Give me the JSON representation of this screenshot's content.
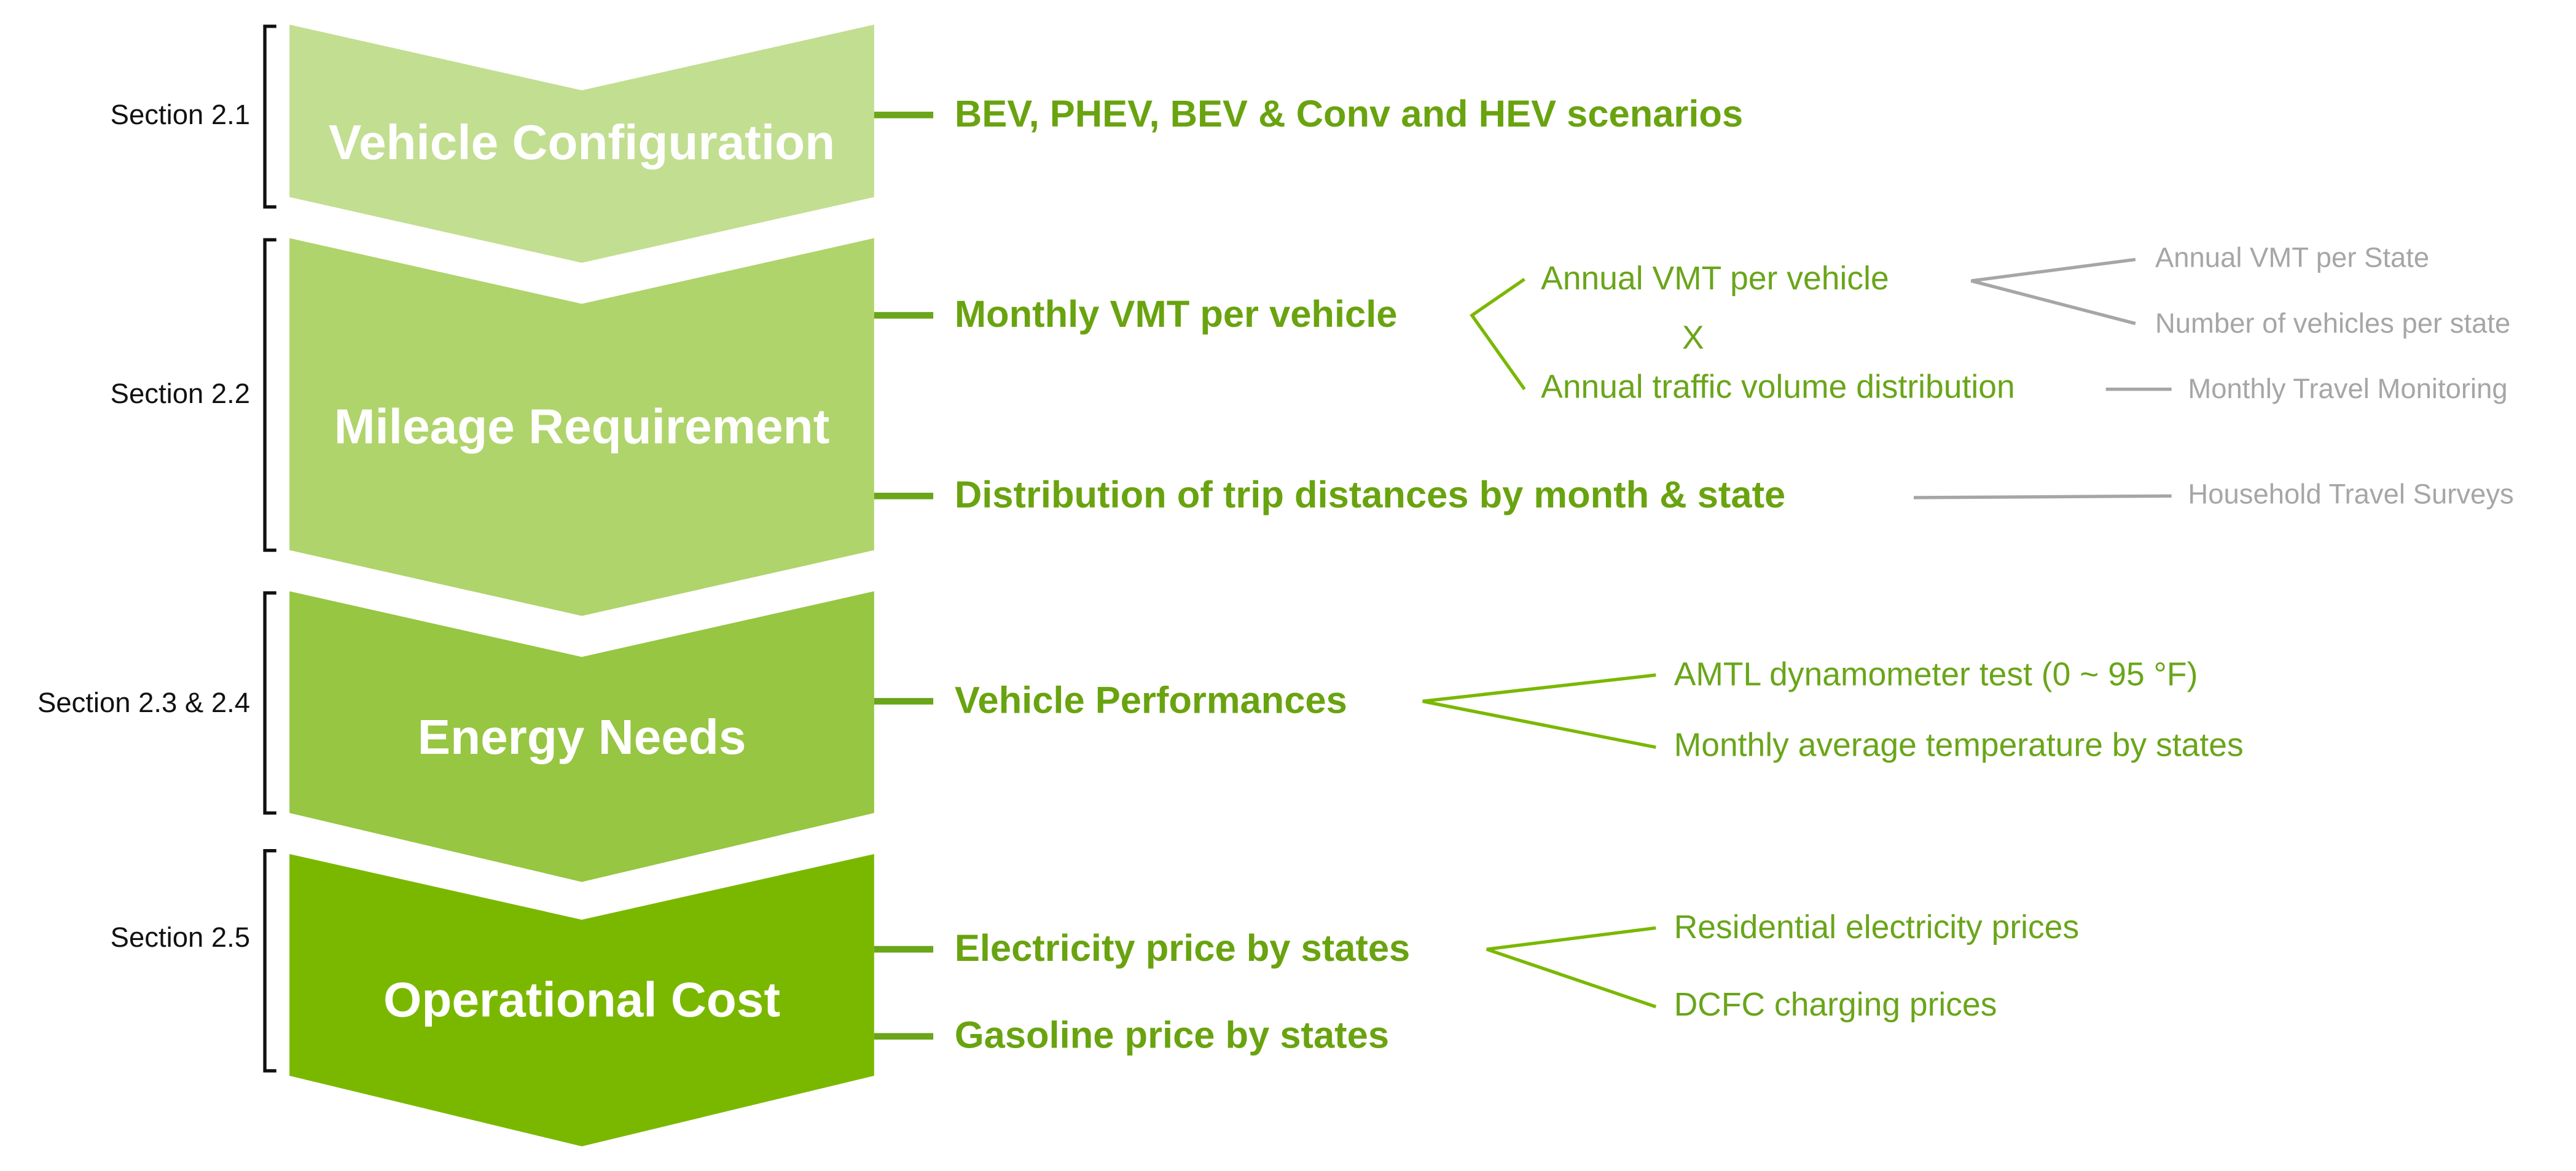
{
  "sections": [
    {
      "label": "Section 2.1",
      "title": "Vehicle Configuration",
      "items": [
        {
          "text": "BEV, PHEV, BEV & Conv and HEV scenarios"
        }
      ]
    },
    {
      "label": "Section 2.2",
      "title": "Mileage Requirement",
      "items": [
        {
          "text": "Monthly VMT per vehicle",
          "inputs": [
            {
              "text": "Annual VMT per vehicle",
              "sources": [
                "Annual VMT per State",
                "Number of vehicles per state"
              ]
            },
            {
              "text": "Annual traffic volume distribution",
              "sources": [
                "Monthly Travel Monitoring"
              ]
            }
          ],
          "operator": "X"
        },
        {
          "text": "Distribution of trip distances by month & state",
          "sources": [
            "Household Travel Surveys"
          ]
        }
      ]
    },
    {
      "label": "Section 2.3 & 2.4",
      "title": "Energy Needs",
      "items": [
        {
          "text": "Vehicle Performances",
          "inputs": [
            {
              "text": "AMTL dynamometer test (0 ~ 95 °F)"
            },
            {
              "text": "Monthly average temperature by states"
            }
          ]
        }
      ]
    },
    {
      "label": "Section 2.5",
      "title": "Operational Cost",
      "items": [
        {
          "text": "Electricity price by states",
          "inputs": [
            {
              "text": "Residential electricity prices"
            },
            {
              "text": "DCFC charging prices"
            }
          ]
        },
        {
          "text": "Gasoline price by states"
        }
      ]
    }
  ]
}
